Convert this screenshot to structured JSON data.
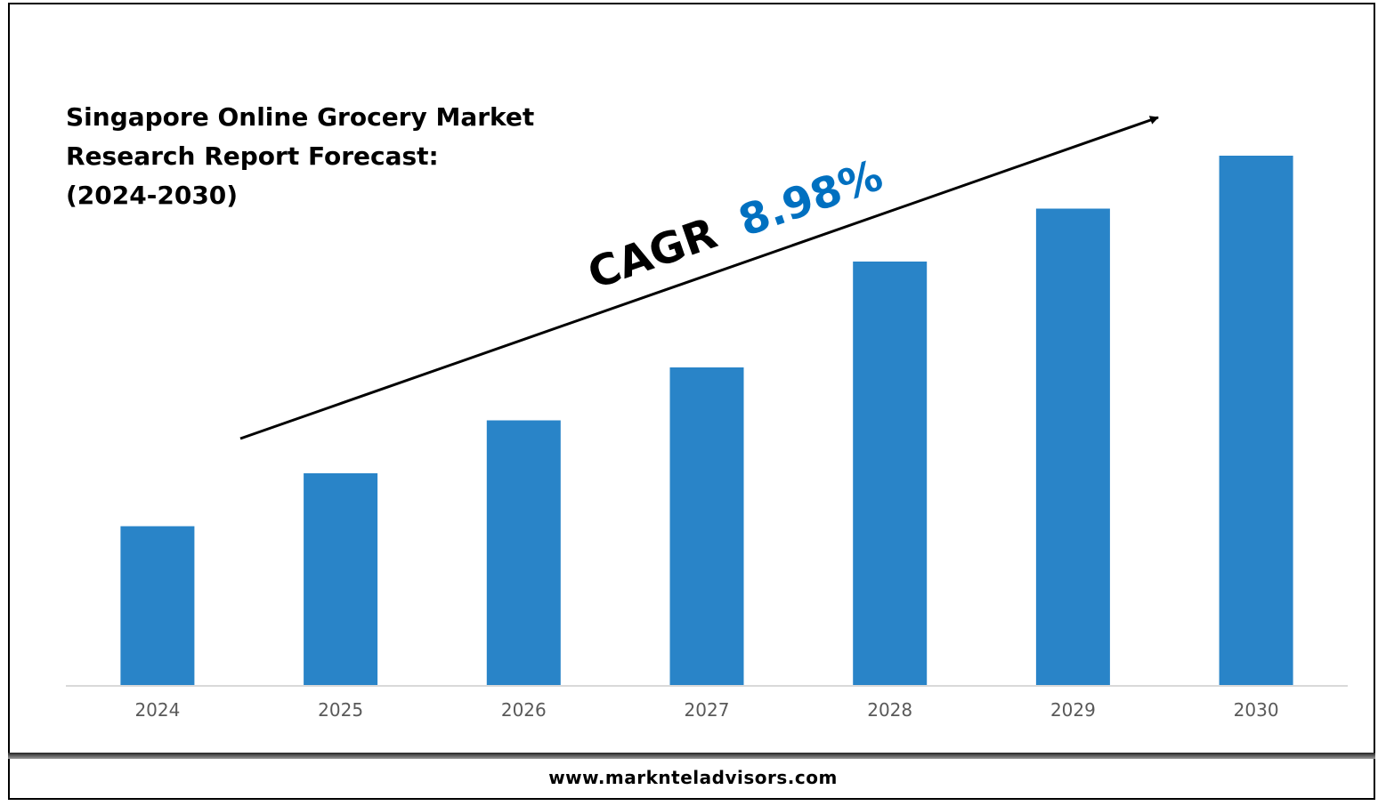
{
  "header": {
    "title_lines": [
      "Singapore Online Grocery Market",
      "Research Report Forecast:",
      "(2024-2030)"
    ]
  },
  "annotation": {
    "cagr_label": "CAGR",
    "cagr_value": "8.98%",
    "cagr_label_color": "#000000",
    "cagr_value_color": "#0070C0"
  },
  "footer": {
    "url": "www.marknteladvisors.com"
  },
  "chart_data": {
    "type": "bar",
    "categories": [
      "2024",
      "2025",
      "2026",
      "2027",
      "2028",
      "2029",
      "2030"
    ],
    "values": [
      30,
      40,
      50,
      60,
      80,
      90,
      100
    ],
    "ylim": [
      0,
      100
    ],
    "bar_color": "#2984C8",
    "grid": false,
    "legend": "none"
  }
}
